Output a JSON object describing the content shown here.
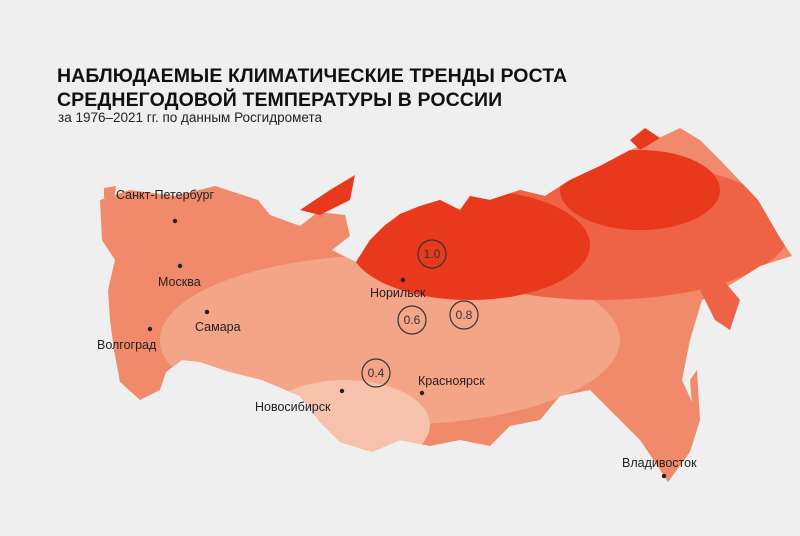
{
  "title_line1": "НАБЛЮДАЕМЫЕ КЛИМАТИЧЕСКИЕ ТРЕНДЫ РОСТА",
  "title_line2": "СРЕДНЕГОДОВОЙ ТЕМПЕРАТУРЫ В РОССИИ",
  "subtitle": "за 1976–2021 гг. по данным Росгидромета",
  "colors": {
    "background": "#efefef",
    "lightest": "#f6c2ac",
    "light": "#f4a587",
    "medium": "#f18a6b",
    "strong": "#ee6346",
    "strongest": "#e8391c"
  },
  "cities": [
    {
      "name": "Санкт-Петербург"
    },
    {
      "name": "Москва"
    },
    {
      "name": "Самара"
    },
    {
      "name": "Волгоград"
    },
    {
      "name": "Норильск"
    },
    {
      "name": "Новосибирск"
    },
    {
      "name": "Красноярск"
    },
    {
      "name": "Владивосток"
    }
  ],
  "isoline_labels": [
    "1.0",
    "0.8",
    "0.6",
    "0.4"
  ]
}
